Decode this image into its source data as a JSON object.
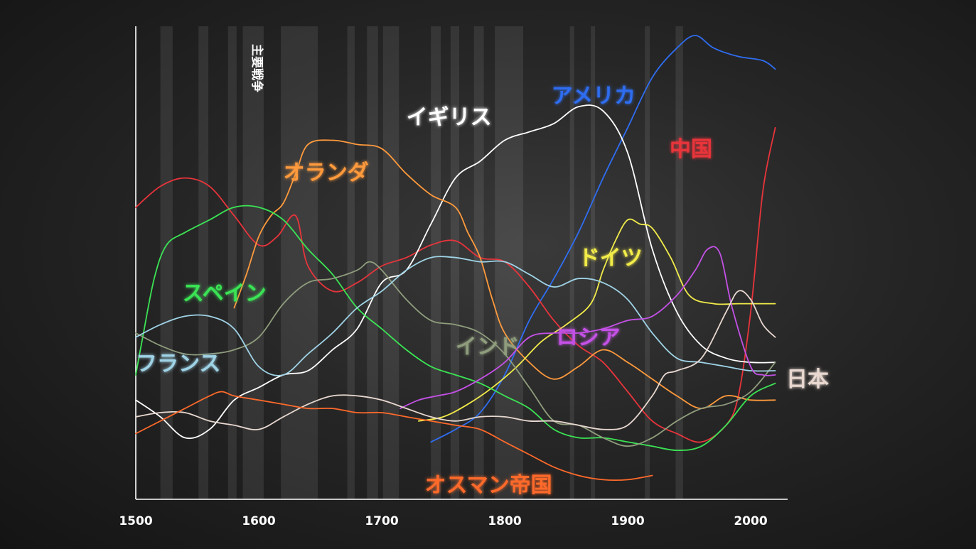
{
  "chart_data": {
    "type": "line",
    "title": "",
    "xlabel": "",
    "ylabel": "",
    "xlim": [
      1500,
      2025
    ],
    "x_ticks": [
      "1500",
      "1600",
      "1700",
      "1800",
      "1900",
      "2000"
    ],
    "band_label": "主要戦争",
    "war_bands": [
      [
        1520,
        1530
      ],
      [
        1551,
        1559
      ],
      [
        1575,
        1582
      ],
      [
        1587,
        1604
      ],
      [
        1618,
        1648
      ],
      [
        1672,
        1678
      ],
      [
        1688,
        1697
      ],
      [
        1701,
        1714
      ],
      [
        1740,
        1748
      ],
      [
        1756,
        1763
      ],
      [
        1775,
        1783
      ],
      [
        1792,
        1815
      ],
      [
        1853,
        1856
      ],
      [
        1870,
        1871
      ],
      [
        1914,
        1918
      ],
      [
        1939,
        1945
      ]
    ],
    "series": [
      {
        "name": "アメリカ",
        "color": "#2f6df0",
        "label_x": 1705,
        "x": [
          1740,
          1760,
          1780,
          1800,
          1820,
          1840,
          1860,
          1880,
          1900,
          1920,
          1940,
          1955,
          1970,
          1990,
          2010,
          2020
        ],
        "y": [
          3,
          6,
          10,
          19,
          32,
          42,
          53,
          66,
          78,
          90,
          97,
          100,
          97,
          95,
          94,
          92
        ]
      },
      {
        "name": "中国",
        "color": "#e8343b",
        "label_x": 1700,
        "x": [
          1500,
          1520,
          1540,
          1560,
          1580,
          1600,
          1615,
          1630,
          1640,
          1660,
          1680,
          1700,
          1720,
          1740,
          1760,
          1780,
          1800,
          1820,
          1840,
          1860,
          1880,
          1900,
          1920,
          1940,
          1960,
          1980,
          1990,
          2000,
          2010,
          2020
        ],
        "y": [
          59,
          64,
          66,
          64,
          57,
          50,
          52,
          57,
          45,
          39,
          41,
          45,
          47,
          50,
          51,
          47,
          46,
          40,
          32,
          26,
          22,
          15,
          8,
          5,
          3,
          7,
          14,
          34,
          63,
          78
        ]
      },
      {
        "name": "イギリス",
        "color": "#ffffff",
        "label_x": 1720,
        "x": [
          1500,
          1520,
          1540,
          1560,
          1580,
          1600,
          1620,
          1640,
          1660,
          1680,
          1700,
          1720,
          1740,
          1760,
          1780,
          1800,
          1820,
          1840,
          1860,
          1880,
          1900,
          1920,
          1940,
          1960,
          1980,
          2000,
          2020
        ],
        "y": [
          13,
          9,
          4,
          6,
          13,
          16,
          19,
          20,
          25,
          30,
          41,
          44,
          55,
          66,
          70,
          75,
          77,
          79,
          83,
          82,
          72,
          49,
          34,
          26,
          23,
          22,
          22
        ]
      },
      {
        "name": "オランダ",
        "color": "#ff9a3c",
        "label_x": 1620,
        "x": [
          1580,
          1590,
          1600,
          1610,
          1620,
          1630,
          1640,
          1660,
          1680,
          1700,
          1720,
          1740,
          1760,
          1770,
          1780,
          1790,
          1800,
          1820,
          1840,
          1860,
          1880,
          1900,
          1920,
          1940,
          1960,
          1980,
          2000,
          2020
        ],
        "y": [
          35,
          43,
          52,
          57,
          60,
          67,
          74,
          75,
          74,
          73,
          67,
          62,
          59,
          53,
          47,
          37,
          29,
          22,
          18,
          21,
          25,
          22,
          18,
          14,
          11,
          14,
          13,
          13
        ]
      },
      {
        "name": "ドイツ",
        "color": "#f2ec4a",
        "label_x": 1860,
        "x": [
          1730,
          1750,
          1770,
          1790,
          1810,
          1830,
          1850,
          1870,
          1880,
          1890,
          1900,
          1910,
          1920,
          1935,
          1950,
          1970,
          1990,
          2010,
          2020
        ],
        "y": [
          8,
          9,
          12,
          16,
          21,
          27,
          31,
          36,
          44,
          51,
          56,
          55,
          54,
          47,
          38,
          36,
          36,
          36,
          36
        ]
      },
      {
        "name": "スペイン",
        "color": "#3be454",
        "label_x": 1538,
        "x": [
          1500,
          1505,
          1515,
          1525,
          1540,
          1560,
          1580,
          1600,
          1620,
          1640,
          1660,
          1680,
          1700,
          1720,
          1740,
          1760,
          1780,
          1800,
          1820,
          1840,
          1860,
          1880,
          1900,
          1920,
          1940,
          1960,
          1980,
          2000,
          2020
        ],
        "y": [
          19,
          27,
          42,
          50,
          53,
          56,
          59,
          59,
          56,
          49,
          43,
          35,
          30,
          25,
          21,
          19,
          17,
          14,
          11,
          6,
          4,
          4,
          3,
          2,
          1,
          2,
          7,
          14,
          17
        ]
      },
      {
        "name": "インド",
        "color": "#8f9d7d",
        "label_x": 1760,
        "x": [
          1500,
          1520,
          1540,
          1560,
          1580,
          1600,
          1620,
          1640,
          1660,
          1680,
          1690,
          1700,
          1720,
          1740,
          1760,
          1780,
          1800,
          1820,
          1840,
          1860,
          1880,
          1900,
          1920,
          1940,
          1960,
          1980,
          2000,
          2020
        ],
        "y": [
          29,
          26,
          24,
          24,
          25,
          28,
          36,
          41,
          42,
          44,
          46,
          44,
          37,
          32,
          31,
          29,
          24,
          16,
          8,
          7,
          4,
          2,
          4,
          8,
          11,
          12,
          15,
          22
        ]
      },
      {
        "name": "フランス",
        "color": "#9fd3e6",
        "label_x": 1500,
        "x": [
          1500,
          1520,
          1540,
          1560,
          1580,
          1600,
          1620,
          1640,
          1660,
          1680,
          1700,
          1720,
          1740,
          1760,
          1780,
          1800,
          1820,
          1840,
          1860,
          1880,
          1900,
          1920,
          1940,
          1960,
          1980,
          2000,
          2020
        ],
        "y": [
          28,
          31,
          33,
          33,
          30,
          21,
          19,
          24,
          29,
          35,
          39,
          44,
          47,
          47,
          46,
          46,
          43,
          40,
          42,
          41,
          37,
          29,
          23,
          22,
          21,
          20,
          20
        ]
      },
      {
        "name": "ロシア",
        "color": "#c451e6",
        "label_x": 1842,
        "x": [
          1715,
          1730,
          1745,
          1760,
          1780,
          1800,
          1820,
          1840,
          1860,
          1880,
          1900,
          1920,
          1940,
          1955,
          1965,
          1975,
          1985,
          2000,
          2010,
          2020
        ],
        "y": [
          11,
          13,
          14,
          15,
          18,
          22,
          28,
          29,
          29,
          30,
          32,
          33,
          38,
          44,
          49,
          48,
          35,
          21,
          19,
          19
        ]
      },
      {
        "name": "日本",
        "color": "#e8d8d0",
        "label_x": 2022,
        "x": [
          1500,
          1520,
          1540,
          1560,
          1580,
          1600,
          1620,
          1640,
          1660,
          1680,
          1700,
          1720,
          1740,
          1760,
          1780,
          1800,
          1820,
          1840,
          1860,
          1880,
          1900,
          1920,
          1930,
          1940,
          1960,
          1980,
          1990,
          2000,
          2010,
          2020
        ],
        "y": [
          9,
          10,
          10,
          8,
          7,
          6,
          9,
          12,
          14,
          14,
          13,
          11,
          9,
          8,
          9,
          9,
          8,
          8,
          7,
          6,
          7,
          14,
          19,
          20,
          23,
          34,
          39,
          37,
          31,
          28
        ]
      },
      {
        "name": "オスマン帝国",
        "color": "#ff6a2a",
        "label_x": 1735,
        "x": [
          1500,
          1520,
          1540,
          1560,
          1570,
          1580,
          1600,
          1620,
          1640,
          1660,
          1680,
          1700,
          1720,
          1740,
          1760,
          1780,
          1800,
          1820,
          1840,
          1860,
          1880,
          1900,
          1920
        ],
        "y": [
          5,
          8,
          11,
          14,
          15,
          14,
          13,
          12,
          11,
          11,
          10,
          10,
          9,
          8,
          7,
          6,
          3,
          0,
          -3,
          -5,
          -6,
          -6,
          -5
        ]
      }
    ]
  }
}
